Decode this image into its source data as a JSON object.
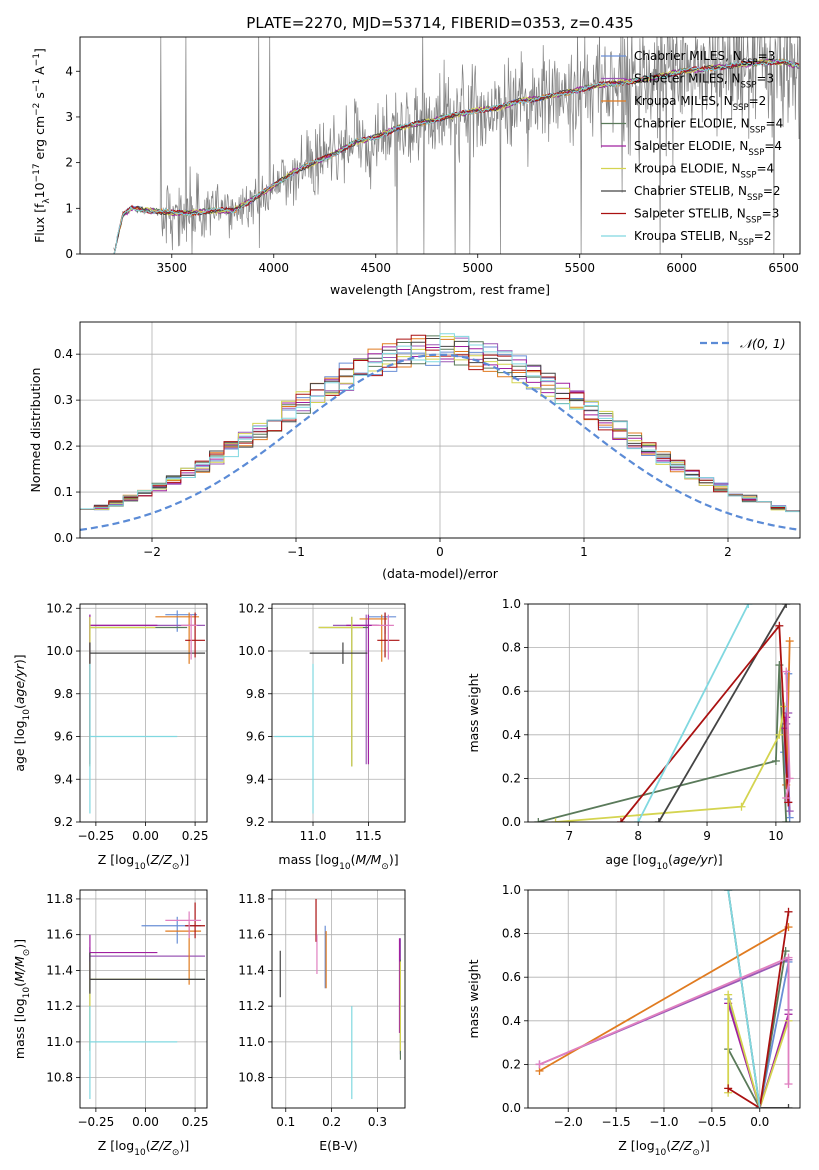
{
  "figure": {
    "title": "PLATE=2270, MJD=53714, FIBERID=0353, z=0.435",
    "model_colors": [
      "#6a8fd6",
      "#9b59b6",
      "#e07b20",
      "#5a7a5a",
      "#a020a0",
      "#d4d450",
      "#444444",
      "#aa1111",
      "#80d8e0"
    ]
  },
  "chart_data": [
    {
      "id": "spectrum",
      "type": "line",
      "title": "PLATE=2270, MJD=53714, FIBERID=0353, z=0.435",
      "xlabel": "wavelength [Angstrom, rest frame]",
      "ylabel": "Flux [f_λ 10^-17 erg cm^-2 s^-1 A^-1]",
      "xlim": [
        3050,
        6580
      ],
      "ylim": [
        0,
        4.75
      ],
      "xticks": [
        3500,
        4000,
        4500,
        5000,
        5500,
        6000,
        6500
      ],
      "yticks": [
        0,
        1,
        2,
        3,
        4
      ],
      "grid": false,
      "legend_position": "top-right",
      "data_trend": {
        "x": [
          3215,
          3260,
          3300,
          3400,
          3500,
          3600,
          3700,
          3800,
          3900,
          4000,
          4100,
          4200,
          4300,
          4400,
          4500,
          4600,
          4700,
          4800,
          4900,
          5000,
          5100,
          5200,
          5300,
          5400,
          5500,
          5600,
          5700,
          5800,
          5900,
          6000,
          6100,
          6200,
          6300,
          6400,
          6500,
          6580
        ],
        "y": [
          0.0,
          0.85,
          1.0,
          0.95,
          0.9,
          0.9,
          0.95,
          0.95,
          1.2,
          1.5,
          1.8,
          2.0,
          2.2,
          2.45,
          2.55,
          2.75,
          2.85,
          2.95,
          3.05,
          3.15,
          3.2,
          3.35,
          3.4,
          3.5,
          3.6,
          3.7,
          3.75,
          3.8,
          3.9,
          4.0,
          4.05,
          4.1,
          4.15,
          4.2,
          4.2,
          4.1
        ]
      },
      "series": [
        {
          "name": "Chabrier MILES, N_SSP=3",
          "color": "#6a8fd6"
        },
        {
          "name": "Salpeter MILES, N_SSP=3",
          "color": "#9b59b6"
        },
        {
          "name": "Kroupa MILES, N_SSP=2",
          "color": "#e07b20"
        },
        {
          "name": "Chabrier ELODIE, N_SSP=4",
          "color": "#5a7a5a"
        },
        {
          "name": "Salpeter ELODIE, N_SSP=4",
          "color": "#a020a0"
        },
        {
          "name": "Kroupa ELODIE, N_SSP=4",
          "color": "#d4d450"
        },
        {
          "name": "Chabrier STELIB, N_SSP=2",
          "color": "#444444"
        },
        {
          "name": "Salpeter STELIB, N_SSP=3",
          "color": "#aa1111"
        },
        {
          "name": "Kroupa STELIB, N_SSP=2",
          "color": "#80d8e0"
        }
      ]
    },
    {
      "id": "residuals",
      "type": "line",
      "xlabel": "(data-model)/error",
      "ylabel": "Normed distribution",
      "xlim": [
        -2.5,
        2.5
      ],
      "ylim": [
        0,
        0.47
      ],
      "xticks": [
        -2,
        -1,
        0,
        1,
        2
      ],
      "yticks": [
        0.0,
        0.1,
        0.2,
        0.3,
        0.4
      ],
      "grid": true,
      "legend_position": "top-right",
      "legend": [
        {
          "name": "N(0, 1)",
          "style": "dashed",
          "color": "#5b8bd6"
        }
      ],
      "bin_width": 0.1,
      "bins_start": -2.5
    },
    {
      "id": "age-vs-Z",
      "type": "scatter",
      "xlabel": "Z [log10(Z/Z_sun)]",
      "ylabel": "age  [log10(age/yr)]",
      "xlim": [
        -0.33,
        0.31
      ],
      "ylim": [
        9.2,
        10.22
      ],
      "xticks": [
        -0.25,
        0.0,
        0.25
      ],
      "yticks": [
        9.2,
        9.4,
        9.6,
        9.8,
        10.0,
        10.2
      ],
      "grid": true,
      "points": [
        {
          "x": 0.16,
          "y": 10.17,
          "xe": [
            0.06,
            0.1
          ],
          "ye": [
            0.08,
            0.02
          ],
          "color": "#6a8fd6"
        },
        {
          "x": -0.28,
          "y": 10.12,
          "xe": [
            0.0,
            0.58
          ],
          "ye": [
            0.65,
            0.05
          ],
          "color": "#9b59b6"
        },
        {
          "x": 0.22,
          "y": 10.16,
          "xe": [
            0.17,
            0.05
          ],
          "ye": [
            0.22,
            0.02
          ],
          "color": "#e07b20"
        },
        {
          "x": -0.28,
          "y": 10.11,
          "xe": [
            0.0,
            0.49
          ],
          "ye": [
            0.65,
            0.05
          ],
          "color": "#5a7a5a"
        },
        {
          "x": -0.28,
          "y": 10.12,
          "xe": [
            0.0,
            0.34
          ],
          "ye": [
            0.65,
            0.05
          ],
          "color": "#a020a0"
        },
        {
          "x": -0.28,
          "y": 10.11,
          "xe": [
            0.0,
            0.33
          ],
          "ye": [
            0.65,
            0.05
          ],
          "color": "#d4d450"
        },
        {
          "x": -0.28,
          "y": 9.99,
          "xe": [
            0.0,
            0.58
          ],
          "ye": [
            0.05,
            0.05
          ],
          "color": "#444444"
        },
        {
          "x": 0.25,
          "y": 10.05,
          "xe": [
            0.05,
            0.05
          ],
          "ye": [
            0.08,
            0.13
          ],
          "color": "#aa1111"
        },
        {
          "x": -0.28,
          "y": 9.6,
          "xe": [
            0.0,
            0.44
          ],
          "ye": [
            0.36,
            0.34
          ],
          "color": "#80d8e0"
        },
        {
          "x": 0.23,
          "y": 10.12,
          "xe": [
            0.05,
            0.03
          ],
          "ye": [
            0.16,
            0.05
          ],
          "color": "#e080c0"
        }
      ]
    },
    {
      "id": "age-vs-mass",
      "type": "scatter",
      "xlabel": "mass [log10(M/M_sun)]",
      "ylabel": "",
      "xlim": [
        10.63,
        11.83
      ],
      "ylim": [
        9.2,
        10.22
      ],
      "xticks": [
        11.0,
        11.5
      ],
      "yticks": [
        9.2,
        9.4,
        9.6,
        9.8,
        10.0,
        10.2
      ],
      "grid": true,
      "points": [
        {
          "x": 11.65,
          "y": 10.16,
          "xe": [
            0.15,
            0.1
          ],
          "ye": [
            0.08,
            0.02
          ],
          "color": "#6a8fd6"
        },
        {
          "x": 11.48,
          "y": 10.12,
          "xe": [
            0.3,
            0.1
          ],
          "ye": [
            0.65,
            0.05
          ],
          "color": "#9b59b6"
        },
        {
          "x": 11.62,
          "y": 10.15,
          "xe": [
            0.2,
            0.05
          ],
          "ye": [
            0.2,
            0.02
          ],
          "color": "#e07b20"
        },
        {
          "x": 11.35,
          "y": 10.11,
          "xe": [
            0.3,
            0.15
          ],
          "ye": [
            0.65,
            0.05
          ],
          "color": "#5a7a5a"
        },
        {
          "x": 11.5,
          "y": 10.12,
          "xe": [
            0.2,
            0.1
          ],
          "ye": [
            0.65,
            0.05
          ],
          "color": "#a020a0"
        },
        {
          "x": 11.35,
          "y": 10.11,
          "xe": [
            0.3,
            0.1
          ],
          "ye": [
            0.65,
            0.05
          ],
          "color": "#d4d450"
        },
        {
          "x": 11.27,
          "y": 9.99,
          "xe": [
            0.3,
            0.22
          ],
          "ye": [
            0.05,
            0.05
          ],
          "color": "#444444"
        },
        {
          "x": 11.65,
          "y": 10.05,
          "xe": [
            0.07,
            0.13
          ],
          "ye": [
            0.08,
            0.13
          ],
          "color": "#aa1111"
        },
        {
          "x": 11.0,
          "y": 9.6,
          "xe": [
            0.35,
            0.0
          ],
          "ye": [
            0.36,
            0.34
          ],
          "color": "#80d8e0"
        },
        {
          "x": 11.68,
          "y": 10.12,
          "xe": [
            0.15,
            0.05
          ],
          "ye": [
            0.16,
            0.05
          ],
          "color": "#e080c0"
        }
      ]
    },
    {
      "id": "mass-weight-vs-age",
      "type": "line",
      "xlabel": "age  [log10(age/yr)]",
      "ylabel": "mass weight",
      "xlim": [
        6.4,
        10.35
      ],
      "ylim": [
        0,
        1
      ],
      "xticks": [
        7,
        8,
        9,
        10
      ],
      "yticks": [
        0.0,
        0.2,
        0.4,
        0.6,
        0.8,
        1.0
      ],
      "grid": true,
      "series": [
        {
          "color": "#6a8fd6",
          "x": [
            10.18,
            10.12,
            10.2
          ],
          "y": [
            0.68,
            0.32,
            0.02
          ]
        },
        {
          "color": "#9b59b6",
          "x": [
            10.18,
            10.15,
            10.2
          ],
          "y": [
            0.5,
            0.45,
            0.05
          ]
        },
        {
          "color": "#e07b20",
          "x": [
            10.2,
            10.15
          ],
          "y": [
            0.83,
            0.17
          ]
        },
        {
          "color": "#5a7a5a",
          "x": [
            6.55,
            10.0,
            10.05,
            10.15
          ],
          "y": [
            0.0,
            0.28,
            0.72,
            0.0
          ]
        },
        {
          "color": "#a020a0",
          "x": [
            10.15,
            10.12,
            10.18
          ],
          "y": [
            0.48,
            0.43,
            0.09
          ]
        },
        {
          "color": "#d4d450",
          "x": [
            6.8,
            9.5,
            10.05,
            10.12
          ],
          "y": [
            0.0,
            0.07,
            0.4,
            0.53
          ]
        },
        {
          "color": "#444444",
          "x": [
            8.3,
            10.15
          ],
          "y": [
            0.0,
            1.0
          ]
        },
        {
          "color": "#aa1111",
          "x": [
            7.75,
            10.05,
            10.18
          ],
          "y": [
            0.0,
            0.9,
            0.09
          ]
        },
        {
          "color": "#80d8e0",
          "x": [
            8.0,
            9.6
          ],
          "y": [
            0.0,
            1.0
          ]
        },
        {
          "color": "#e080c0",
          "x": [
            10.15,
            10.2,
            10.15
          ],
          "y": [
            0.69,
            0.2,
            0.11
          ]
        }
      ]
    },
    {
      "id": "mass-vs-Z",
      "type": "scatter",
      "xlabel": "Z [log10(Z/Z_sun)]",
      "ylabel": "mass [log10(M/M_sun)]",
      "xlim": [
        -0.33,
        0.31
      ],
      "ylim": [
        10.63,
        11.85
      ],
      "xticks": [
        -0.25,
        0.0,
        0.25
      ],
      "yticks": [
        10.8,
        11.0,
        11.2,
        11.4,
        11.6,
        11.8
      ],
      "grid": true,
      "points": [
        {
          "x": 0.16,
          "y": 11.65,
          "xe": [
            0.18,
            0.12
          ],
          "ye": [
            0.1,
            0.05
          ],
          "color": "#6a8fd6"
        },
        {
          "x": -0.28,
          "y": 11.48,
          "xe": [
            0.0,
            0.58
          ],
          "ye": [
            0.2,
            0.05
          ],
          "color": "#9b59b6"
        },
        {
          "x": 0.22,
          "y": 11.62,
          "xe": [
            0.12,
            0.06
          ],
          "ye": [
            0.3,
            0.05
          ],
          "color": "#e07b20"
        },
        {
          "x": -0.28,
          "y": 11.35,
          "xe": [
            0.0,
            0.58
          ],
          "ye": [
            0.4,
            0.15
          ],
          "color": "#5a7a5a"
        },
        {
          "x": -0.28,
          "y": 11.5,
          "xe": [
            0.0,
            0.34
          ],
          "ye": [
            0.15,
            0.1
          ],
          "color": "#a020a0"
        },
        {
          "x": -0.28,
          "y": 11.35,
          "xe": [
            0.0,
            0.34
          ],
          "ye": [
            0.4,
            0.1
          ],
          "color": "#d4d450"
        },
        {
          "x": -0.28,
          "y": 11.35,
          "xe": [
            0.0,
            0.58
          ],
          "ye": [
            0.08,
            0.15
          ],
          "color": "#444444"
        },
        {
          "x": 0.25,
          "y": 11.65,
          "xe": [
            0.05,
            0.05
          ],
          "ye": [
            0.07,
            0.13
          ],
          "color": "#aa1111"
        },
        {
          "x": -0.28,
          "y": 11.0,
          "xe": [
            0.0,
            0.44
          ],
          "ye": [
            0.32,
            0.2
          ],
          "color": "#80d8e0"
        },
        {
          "x": 0.22,
          "y": 11.68,
          "xe": [
            0.12,
            0.06
          ],
          "ye": [
            0.1,
            0.05
          ],
          "color": "#e080c0"
        }
      ]
    },
    {
      "id": "mass-vs-EBV",
      "type": "scatter",
      "xlabel": "E(B-V)",
      "ylabel": "",
      "xlim": [
        0.07,
        0.36
      ],
      "ylim": [
        10.63,
        11.85
      ],
      "xticks": [
        0.1,
        0.2,
        0.3
      ],
      "yticks": [
        10.8,
        11.0,
        11.2,
        11.4,
        11.6,
        11.8
      ],
      "grid": true,
      "points": [
        {
          "x": 0.186,
          "y": 11.5,
          "ye": [
            0.2,
            0.15
          ],
          "color": "#6a8fd6"
        },
        {
          "x": 0.35,
          "y": 11.48,
          "ye": [
            0.55,
            0.1
          ],
          "color": "#9b59b6"
        },
        {
          "x": 0.188,
          "y": 11.5,
          "ye": [
            0.2,
            0.12
          ],
          "color": "#e07b20"
        },
        {
          "x": 0.35,
          "y": 11.3,
          "ye": [
            0.4,
            0.16
          ],
          "color": "#5a7a5a"
        },
        {
          "x": 0.348,
          "y": 11.5,
          "ye": [
            0.45,
            0.08
          ],
          "color": "#a020a0"
        },
        {
          "x": 0.35,
          "y": 11.2,
          "ye": [
            0.25,
            0.25
          ],
          "color": "#d4d450"
        },
        {
          "x": 0.088,
          "y": 11.4,
          "ye": [
            0.15,
            0.11
          ],
          "color": "#444444"
        },
        {
          "x": 0.166,
          "y": 11.68,
          "ye": [
            0.12,
            0.12
          ],
          "color": "#aa1111"
        },
        {
          "x": 0.244,
          "y": 10.95,
          "ye": [
            0.27,
            0.25
          ],
          "color": "#80d8e0"
        },
        {
          "x": 0.168,
          "y": 11.5,
          "ye": [
            0.12,
            0.1
          ],
          "color": "#e080c0"
        }
      ]
    },
    {
      "id": "mass-weight-vs-Z",
      "type": "line",
      "xlabel": "Z [log10(Z/Z_sun)]",
      "ylabel": "mass weight",
      "xlim": [
        -2.42,
        0.42
      ],
      "ylim": [
        0,
        1
      ],
      "xticks": [
        -2.0,
        -1.5,
        -1.0,
        -0.5,
        0.0
      ],
      "yticks": [
        0.0,
        0.2,
        0.4,
        0.6,
        0.8,
        1.0
      ],
      "grid": true,
      "series": [
        {
          "color": "#6a8fd6",
          "x": [
            -0.33,
            0.0,
            0.3
          ],
          "y": [
            0.5,
            0.0,
            0.67
          ]
        },
        {
          "color": "#9b59b6",
          "x": [
            -2.3,
            0.3,
            0.3
          ],
          "y": [
            0.2,
            0.68,
            0.45
          ]
        },
        {
          "color": "#e07b20",
          "x": [
            -2.3,
            0.3
          ],
          "y": [
            0.17,
            0.83
          ]
        },
        {
          "color": "#5a7a5a",
          "x": [
            -0.33,
            0.0,
            0.27
          ],
          "y": [
            0.27,
            0.0,
            0.72
          ]
        },
        {
          "color": "#a020a0",
          "x": [
            -0.33,
            0.0,
            0.3
          ],
          "y": [
            0.48,
            0.0,
            0.43
          ]
        },
        {
          "color": "#d4d450",
          "x": [
            -0.33,
            -0.33,
            0.0,
            0.3
          ],
          "y": [
            0.07,
            0.52,
            0.0,
            0.4
          ]
        },
        {
          "color": "#444444",
          "x": [
            -0.33,
            0.0,
            0.3
          ],
          "y": [
            1.0,
            0.0,
            0.0
          ]
        },
        {
          "color": "#aa1111",
          "x": [
            -0.33,
            0.0,
            0.3
          ],
          "y": [
            0.09,
            0.0,
            0.9
          ]
        },
        {
          "color": "#80d8e0",
          "x": [
            -0.33,
            0.0
          ],
          "y": [
            1.0,
            0.0
          ]
        },
        {
          "color": "#e080c0",
          "x": [
            -2.3,
            0.3,
            0.3
          ],
          "y": [
            0.2,
            0.69,
            0.11
          ]
        }
      ]
    }
  ]
}
